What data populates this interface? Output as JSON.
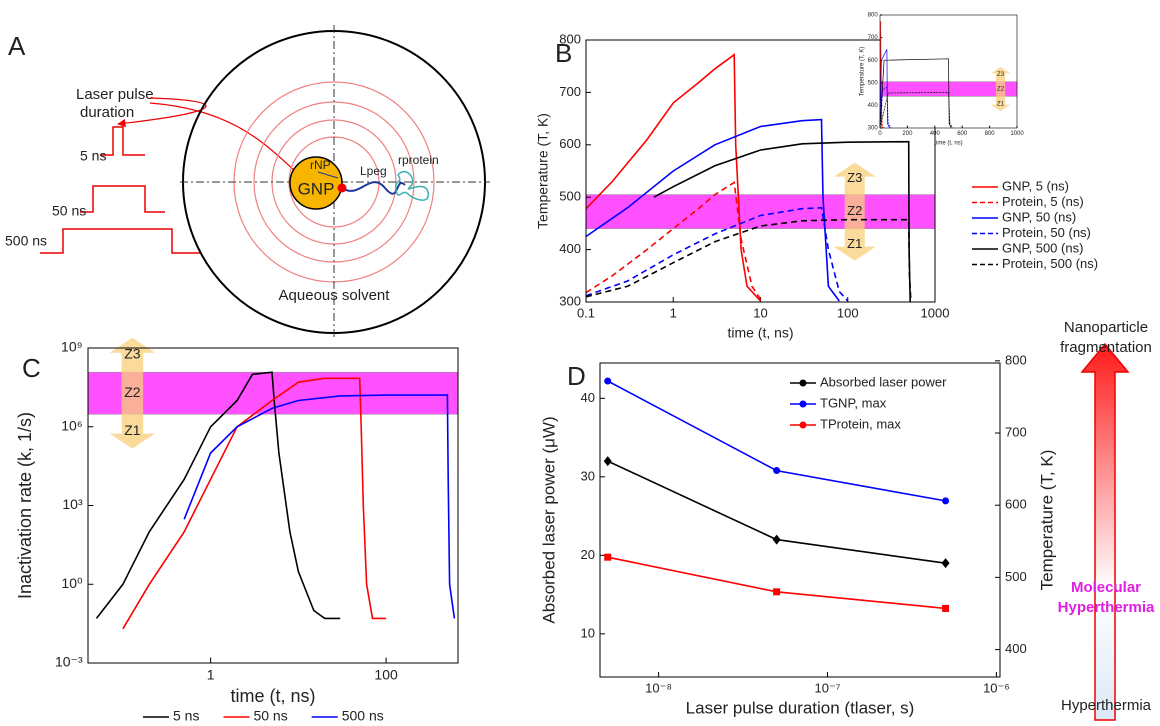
{
  "diagram": {
    "label": "A",
    "pulse_title": [
      "Laser pulse",
      "duration"
    ],
    "pulses": [
      "5 ns",
      "50 ns",
      "500 ns"
    ],
    "particle": "GNP",
    "solvent": "Aqueous solvent",
    "dimensions": [
      "rNP",
      "Lpeg",
      "rprotein"
    ]
  },
  "chart_data": [
    {
      "type": "line",
      "label": "B",
      "xlabel": "time (t, ns)",
      "ylabel": "Temperature (T, K)",
      "xscale": "log",
      "xlim": [
        0.1,
        1000
      ],
      "ylim": [
        300,
        800
      ],
      "xticks": [
        0.1,
        1,
        10,
        100,
        1000
      ],
      "yticks": [
        300,
        400,
        500,
        600,
        700,
        800
      ],
      "legend": "right",
      "bands": [
        {
          "range": [
            440,
            505
          ],
          "color": "#ff33ff",
          "labels": [
            "Z3",
            "Z2",
            "Z1"
          ]
        }
      ],
      "series": [
        {
          "name": "GNP, 5 (ns)",
          "color": "#ff0000",
          "dash": false,
          "x": [
            0.1,
            0.2,
            0.5,
            1,
            2,
            3,
            5,
            5.2,
            6,
            7,
            10
          ],
          "values": [
            478,
            530,
            610,
            680,
            720,
            745,
            772,
            600,
            400,
            330,
            302
          ]
        },
        {
          "name": "Protein, 5 (ns)",
          "color": "#ff0000",
          "dash": true,
          "x": [
            0.1,
            0.2,
            0.5,
            1,
            2,
            3,
            5,
            6,
            8,
            10
          ],
          "values": [
            318,
            350,
            400,
            440,
            480,
            505,
            528,
            420,
            330,
            305
          ]
        },
        {
          "name": "GNP, 50 (ns)",
          "color": "#0000ff",
          "dash": false,
          "x": [
            0.1,
            0.3,
            1,
            3,
            10,
            30,
            50,
            52,
            60,
            80
          ],
          "values": [
            425,
            480,
            550,
            600,
            635,
            646,
            648,
            500,
            330,
            302
          ]
        },
        {
          "name": "Protein, 50 (ns)",
          "color": "#0000ff",
          "dash": true,
          "x": [
            0.1,
            0.3,
            1,
            3,
            10,
            30,
            50,
            60,
            80,
            100
          ],
          "values": [
            312,
            340,
            390,
            430,
            465,
            478,
            480,
            400,
            320,
            302
          ]
        },
        {
          "name": "GNP, 500 (ns)",
          "color": "#000000",
          "dash": false,
          "x": [
            0.6,
            1,
            3,
            10,
            30,
            100,
            500,
            505,
            520
          ],
          "values": [
            500,
            520,
            560,
            590,
            602,
            605,
            606,
            400,
            300
          ]
        },
        {
          "name": "Protein, 500 (ns)",
          "color": "#000000",
          "dash": true,
          "x": [
            0.1,
            0.3,
            1,
            3,
            10,
            30,
            100,
            500,
            510,
            530
          ],
          "values": [
            310,
            330,
            375,
            415,
            445,
            455,
            457,
            457,
            350,
            300
          ]
        }
      ]
    },
    {
      "type": "line",
      "xlabel": "time (t, ns)",
      "ylabel": "Temperature (T, K)",
      "xscale": "linear",
      "xlim": [
        0,
        1000
      ],
      "ylim": [
        300,
        800
      ],
      "xticks": [
        0,
        200,
        400,
        600,
        800,
        1000
      ],
      "yticks": [
        300,
        400,
        500,
        600,
        700,
        800
      ],
      "bands": [
        {
          "range": [
            440,
            505
          ],
          "color": "#ff33ff",
          "labels": [
            "Z3",
            "Z2",
            "Z1"
          ]
        }
      ],
      "series": [
        {
          "color": "#ff0000",
          "dash": false,
          "x": [
            0,
            5,
            10,
            20
          ],
          "values": [
            300,
            772,
            310,
            300
          ]
        },
        {
          "color": "#ff0000",
          "dash": true,
          "x": [
            0,
            5,
            15,
            25
          ],
          "values": [
            300,
            528,
            320,
            300
          ]
        },
        {
          "color": "#0000ff",
          "dash": false,
          "x": [
            0,
            10,
            50,
            55,
            70
          ],
          "values": [
            300,
            600,
            648,
            320,
            300
          ]
        },
        {
          "color": "#0000ff",
          "dash": true,
          "x": [
            0,
            20,
            50,
            60,
            80
          ],
          "values": [
            300,
            470,
            480,
            320,
            300
          ]
        },
        {
          "color": "#000000",
          "dash": false,
          "x": [
            0,
            30,
            500,
            505,
            520
          ],
          "values": [
            300,
            600,
            606,
            320,
            300
          ]
        },
        {
          "color": "#000000",
          "dash": true,
          "x": [
            0,
            60,
            500,
            510,
            530
          ],
          "values": [
            300,
            455,
            457,
            320,
            300
          ]
        }
      ]
    },
    {
      "type": "line",
      "label": "C",
      "xlabel": "time (t, ns)",
      "ylabel": "Inactivation rate (k, 1/s)",
      "xscale": "log",
      "yscale": "log",
      "xlim": [
        0.04,
        660
      ],
      "ylim": [
        0.001,
        1000000000
      ],
      "xticks": [
        1,
        100
      ],
      "yticks": [
        {
          "value": 0.001,
          "label": "10⁻³"
        },
        {
          "value": 1,
          "label": "10⁰"
        },
        {
          "value": 1000,
          "label": "10³"
        },
        {
          "value": 1000000,
          "label": "10⁶"
        },
        {
          "value": 1000000000,
          "label": "10⁹"
        }
      ],
      "legend": "bottom",
      "bands": [
        {
          "range": [
            3000000,
            120000000
          ],
          "color": "#ff33ff",
          "labels": [
            "Z3",
            "Z2",
            "Z1"
          ]
        }
      ],
      "series": [
        {
          "name": "5 ns",
          "color": "#000000",
          "dash": false,
          "x": [
            0.05,
            0.1,
            0.2,
            0.5,
            1,
            2,
            3,
            5,
            5.3,
            6,
            8,
            10,
            15,
            20,
            30
          ],
          "values": [
            0.05,
            1,
            100,
            10000,
            1000000,
            10000000,
            100000000,
            120000000,
            10000000,
            100000,
            100,
            3,
            0.1,
            0.05,
            0.05
          ]
        },
        {
          "name": "50 ns",
          "color": "#ff0000",
          "dash": false,
          "x": [
            0.1,
            0.2,
            0.5,
            1,
            2,
            5,
            10,
            20,
            50,
            52,
            55,
            60,
            70,
            100
          ],
          "values": [
            0.02,
            1,
            100,
            10000,
            1000000,
            10000000,
            50000000,
            70000000,
            70000000,
            1000000,
            1000,
            1,
            0.05,
            0.05
          ]
        },
        {
          "name": "500 ns",
          "color": "#0000ff",
          "dash": false,
          "x": [
            0.5,
            1,
            2,
            5,
            10,
            30,
            100,
            300,
            500,
            510,
            530,
            600
          ],
          "values": [
            300,
            100000,
            1000000,
            5000000,
            10000000,
            15000000,
            16000000,
            16000000,
            16000000,
            10000,
            1,
            0.05
          ]
        }
      ]
    },
    {
      "type": "line",
      "label": "D",
      "xlabel": "Laser pulse duration (tlaser, s)",
      "ylabel": "Absorbed laser power (μW)",
      "y2label": "Temperature (T, K)",
      "xscale": "log",
      "xlim": [
        4.5e-09,
        1.05e-06
      ],
      "ylim": [
        4.5,
        44.5
      ],
      "y2lim": [
        362,
        797
      ],
      "xticks": [
        {
          "value": 1e-08,
          "label": "10⁻⁸"
        },
        {
          "value": 1e-07,
          "label": "10⁻⁷"
        },
        {
          "value": 1e-06,
          "label": "10⁻⁶"
        }
      ],
      "yticks": [
        10,
        20,
        30,
        40
      ],
      "y2ticks": [
        400,
        500,
        600,
        700,
        800
      ],
      "legend": "upper right",
      "x": [
        5e-09,
        5e-08,
        5e-07
      ],
      "series": [
        {
          "name": "Absorbed laser power",
          "color": "#000000",
          "marker": "diamond",
          "values": [
            32,
            22,
            19
          ]
        },
        {
          "name": "TGNP, max",
          "color": "#0000ff",
          "marker": "circle",
          "axis": "y2",
          "values": [
            772,
            648,
            606
          ]
        },
        {
          "name": "TProtein, max",
          "color": "#ff0000",
          "marker": "square",
          "axis": "y2",
          "values": [
            528,
            480,
            457
          ]
        }
      ]
    }
  ],
  "scale_arrow": {
    "top": [
      "Nanoparticle",
      "fragmentation"
    ],
    "middle": [
      "Molecular",
      "Hyperthermia"
    ],
    "bottom": "Hyperthermia"
  }
}
